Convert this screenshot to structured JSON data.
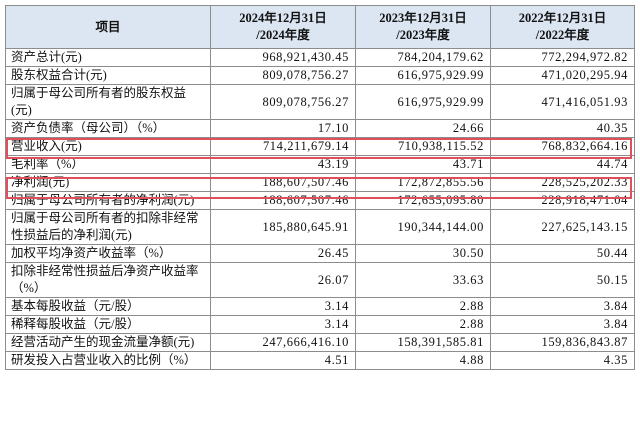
{
  "table": {
    "header": [
      "项目",
      "2024年12月31日\n/2024年度",
      "2023年12月31日\n/2023年度",
      "2022年12月31日\n/2022年度"
    ],
    "rows": [
      [
        "资产总计(元)",
        "968,921,430.45",
        "784,204,179.62",
        "772,294,972.82"
      ],
      [
        "股东权益合计(元)",
        "809,078,756.27",
        "616,975,929.99",
        "471,020,295.94"
      ],
      [
        "归属于母公司所有者的股东权益(元)",
        "809,078,756.27",
        "616,975,929.99",
        "471,416,051.93"
      ],
      [
        "资产负债率（母公司）（%）",
        "17.10",
        "24.66",
        "40.35"
      ],
      [
        "营业收入(元)",
        "714,211,679.14",
        "710,938,115.52",
        "768,832,664.16"
      ],
      [
        "毛利率（%）",
        "43.19",
        "43.71",
        "44.74"
      ],
      [
        "净利润(元)",
        "188,607,507.46",
        "172,872,855.56",
        "228,525,202.33"
      ],
      [
        "归属于母公司所有者的净利润(元)",
        "188,607,507.46",
        "172,655,095.80",
        "228,918,471.04"
      ],
      [
        "归属于母公司所有者的扣除非经常性损益后的净利润(元)",
        "185,880,645.91",
        "190,344,144.00",
        "227,625,143.15"
      ],
      [
        "加权平均净资产收益率（%）",
        "26.45",
        "30.50",
        "50.44"
      ],
      [
        "扣除非经常性损益后净资产收益率（%）",
        "26.07",
        "33.63",
        "50.15"
      ],
      [
        "基本每股收益（元/股）",
        "3.14",
        "2.88",
        "3.84"
      ],
      [
        "稀释每股收益（元/股）",
        "3.14",
        "2.88",
        "3.84"
      ],
      [
        "经营活动产生的现金流量净额(元)",
        "247,666,416.10",
        "158,391,585.81",
        "159,836,843.87"
      ],
      [
        "研发投入占营业收入的比例（%）",
        "4.51",
        "4.88",
        "4.35"
      ]
    ]
  }
}
